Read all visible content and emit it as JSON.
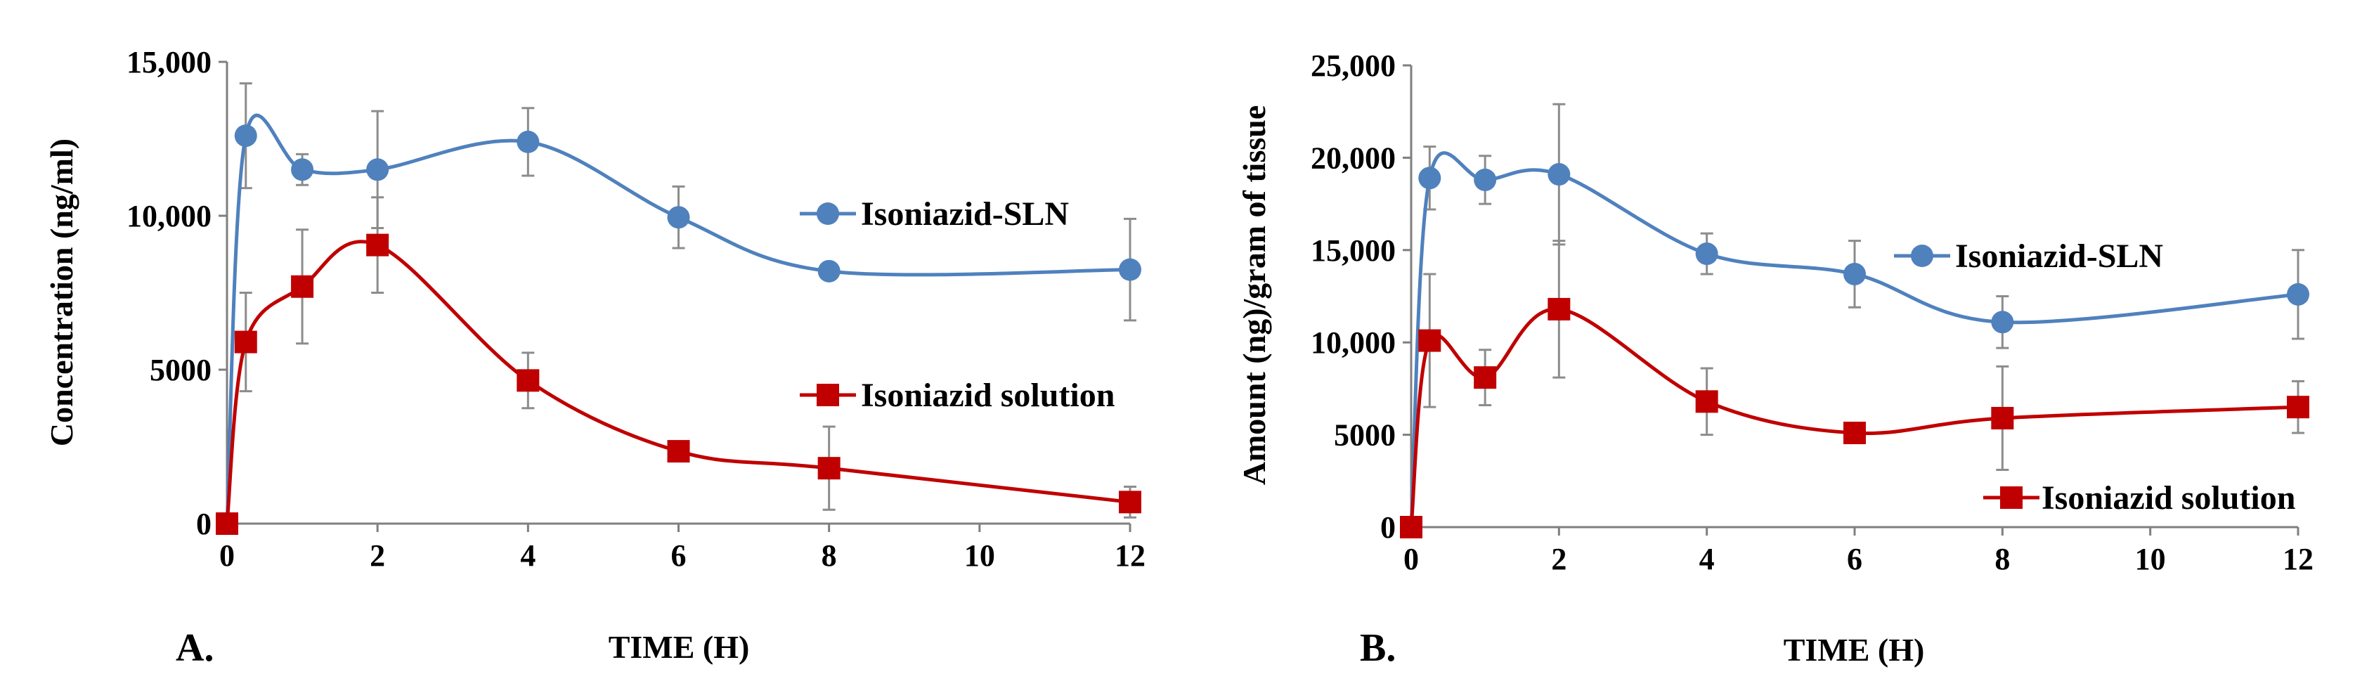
{
  "chart_data": [
    {
      "type": "line",
      "panel_label": "A.",
      "xlabel": "TIME (H)",
      "ylabel": "Concentration (ng/ml)",
      "xlim": [
        0,
        12
      ],
      "ylim": [
        0,
        15000
      ],
      "x_ticks": [
        0,
        2,
        4,
        6,
        8,
        10,
        12
      ],
      "x_tick_labels": [
        "0",
        "2",
        "4",
        "6",
        "8",
        "10",
        "12"
      ],
      "y_ticks": [
        0,
        5000,
        10000,
        15000
      ],
      "y_tick_labels": [
        "0",
        "5000",
        "10,000",
        "15,000"
      ],
      "grid": false,
      "legend_placement": "right",
      "series": [
        {
          "name": "Isoniazid-SLN",
          "color": "#4f81bd",
          "marker": "circle",
          "x": [
            0,
            0.25,
            1,
            2,
            4,
            6,
            8,
            12
          ],
          "values": [
            0,
            12600,
            11500,
            11500,
            12400,
            9950,
            8200,
            8250
          ],
          "error": [
            0,
            1700,
            500,
            1900,
            1100,
            1000,
            0,
            1650
          ]
        },
        {
          "name": "Isoniazid solution",
          "color": "#c00000",
          "marker": "square",
          "x": [
            0,
            0.25,
            1,
            2,
            4,
            6,
            8,
            12
          ],
          "values": [
            0,
            5900,
            7700,
            9050,
            4650,
            2350,
            1800,
            700
          ],
          "error": [
            0,
            1600,
            1850,
            1550,
            900,
            0,
            1350,
            500
          ]
        }
      ]
    },
    {
      "type": "line",
      "panel_label": "B.",
      "xlabel": "TIME (H)",
      "ylabel": "Amount (ng)/gram of tissue",
      "xlim": [
        0,
        12
      ],
      "ylim": [
        0,
        25000
      ],
      "x_ticks": [
        0,
        2,
        4,
        6,
        8,
        10,
        12
      ],
      "x_tick_labels": [
        "0",
        "2",
        "4",
        "6",
        "8",
        "10",
        "12"
      ],
      "y_ticks": [
        0,
        5000,
        10000,
        15000,
        20000,
        25000
      ],
      "y_tick_labels": [
        "0",
        "5000",
        "10,000",
        "15,000",
        "20,000",
        "25,000"
      ],
      "grid": false,
      "legend_placement": "right",
      "series": [
        {
          "name": "Isoniazid-SLN",
          "color": "#4f81bd",
          "marker": "circle",
          "x": [
            0,
            0.25,
            1,
            2,
            4,
            6,
            8,
            12
          ],
          "values": [
            0,
            18900,
            18800,
            19100,
            14800,
            13700,
            11100,
            12600
          ],
          "error": [
            0,
            1700,
            1300,
            3800,
            1100,
            1800,
            1400,
            2400
          ]
        },
        {
          "name": "Isoniazid solution",
          "color": "#c00000",
          "marker": "square",
          "x": [
            0,
            0.25,
            1,
            2,
            4,
            6,
            8,
            12
          ],
          "values": [
            0,
            10100,
            8100,
            11800,
            6800,
            5100,
            5900,
            6500
          ],
          "error": [
            0,
            3600,
            1500,
            3700,
            1800,
            0,
            2800,
            1400
          ]
        }
      ]
    }
  ]
}
